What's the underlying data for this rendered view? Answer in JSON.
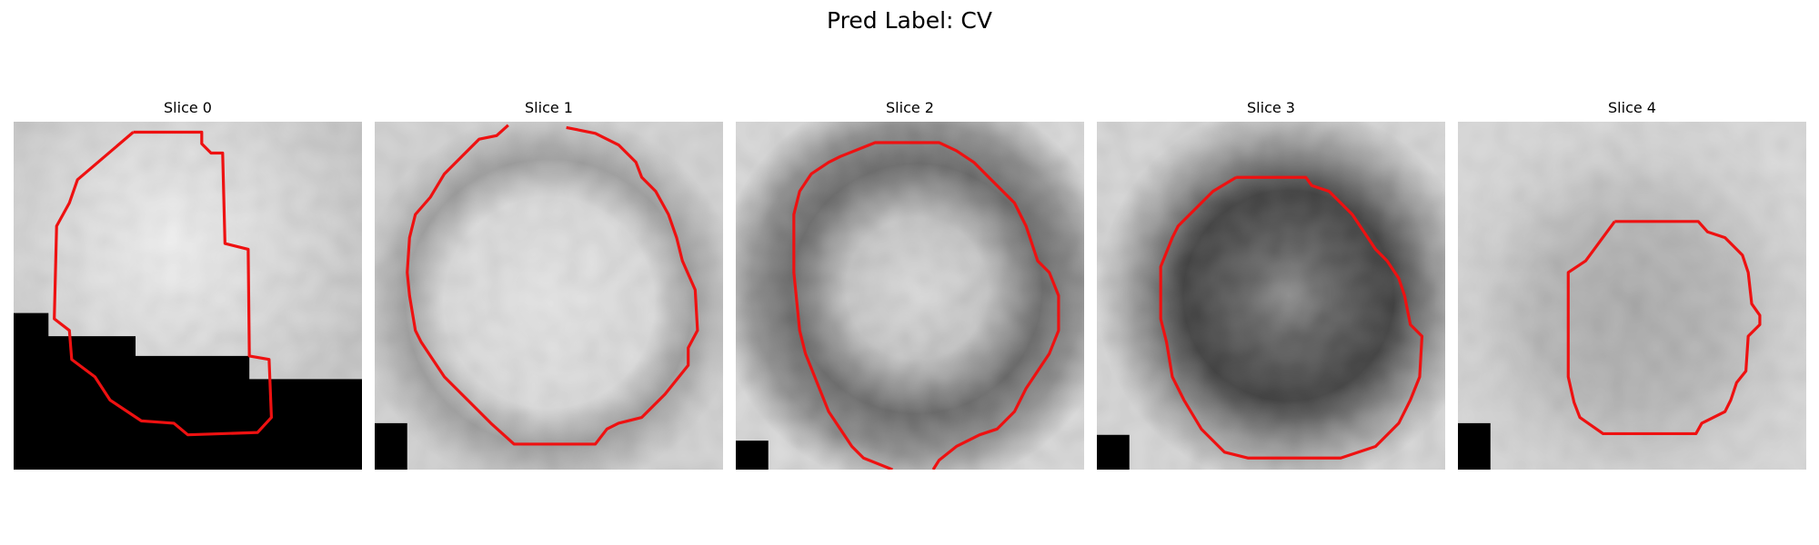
{
  "figure": {
    "suptitle": "Pred Label: CV",
    "panels": [
      {
        "title": "Slice 0",
        "image": "grayscale-slice-with-black-mask-and-red-contour"
      },
      {
        "title": "Slice 1",
        "image": "grayscale-ring-slice-with-red-contour"
      },
      {
        "title": "Slice 2",
        "image": "grayscale-dark-ring-slice-with-red-contour"
      },
      {
        "title": "Slice 3",
        "image": "grayscale-dark-core-slice-with-red-contour"
      },
      {
        "title": "Slice 4",
        "image": "grayscale-faint-slice-with-red-contour"
      }
    ],
    "colors": {
      "contour": "#ee1111",
      "mask": "#000000"
    }
  }
}
